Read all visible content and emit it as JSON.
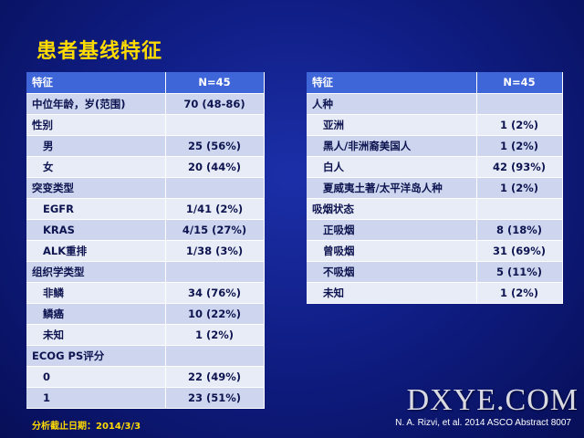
{
  "slide": {
    "title": "患者基线特征",
    "footnote": "分析截止日期：2014/3/3",
    "citation": "N. A. Rizvi, et al. 2014 ASCO Abstract  8007",
    "watermark": "DXYE.COM"
  },
  "colors": {
    "title": "#ffdb00",
    "header_bg": "#3e66d8",
    "row_dark": "#cdd6ee",
    "row_light": "#e8ecf7"
  },
  "left_table": {
    "headers": [
      "特征",
      "N=45"
    ],
    "rows": [
      {
        "label": "中位年龄，岁(范围)",
        "value": "70 (48-86)",
        "indent": false
      },
      {
        "label": "性别",
        "value": "",
        "indent": false
      },
      {
        "label": "男",
        "value": "25 (56%)",
        "indent": true
      },
      {
        "label": "女",
        "value": "20 (44%)",
        "indent": true
      },
      {
        "label": "突变类型",
        "value": "",
        "indent": false
      },
      {
        "label": "EGFR",
        "value": "1/41 (2%)",
        "indent": true
      },
      {
        "label": "KRAS",
        "value": "4/15 (27%)",
        "indent": true
      },
      {
        "label": "ALK重排",
        "value": "1/38 (3%)",
        "indent": true
      },
      {
        "label": "组织学类型",
        "value": "",
        "indent": false
      },
      {
        "label": "非鳞",
        "value": "34 (76%)",
        "indent": true
      },
      {
        "label": "鳞癌",
        "value": "10 (22%)",
        "indent": true
      },
      {
        "label": "未知",
        "value": "1 (2%)",
        "indent": true
      },
      {
        "label": "ECOG PS评分",
        "value": "",
        "indent": false
      },
      {
        "label": "0",
        "value": "22 (49%)",
        "indent": true
      },
      {
        "label": "1",
        "value": "23 (51%)",
        "indent": true
      }
    ]
  },
  "right_table": {
    "headers": [
      "特征",
      "N=45"
    ],
    "rows": [
      {
        "label": "人种",
        "value": "",
        "indent": false
      },
      {
        "label": "亚洲",
        "value": "1 (2%)",
        "indent": true
      },
      {
        "label": "黑人/非洲裔美国人",
        "value": "1 (2%)",
        "indent": true
      },
      {
        "label": "白人",
        "value": "42  (93%)",
        "indent": true
      },
      {
        "label": "夏威夷土著/太平洋岛人种",
        "value": "1 (2%)",
        "indent": true
      },
      {
        "label": "吸烟状态",
        "value": "",
        "indent": false
      },
      {
        "label": "正吸烟",
        "value": "8 (18%)",
        "indent": true
      },
      {
        "label": "曾吸烟",
        "value": "31 (69%)",
        "indent": true
      },
      {
        "label": "不吸烟",
        "value": "5 (11%)",
        "indent": true
      },
      {
        "label": "未知",
        "value": "1 (2%)",
        "indent": true
      }
    ]
  }
}
